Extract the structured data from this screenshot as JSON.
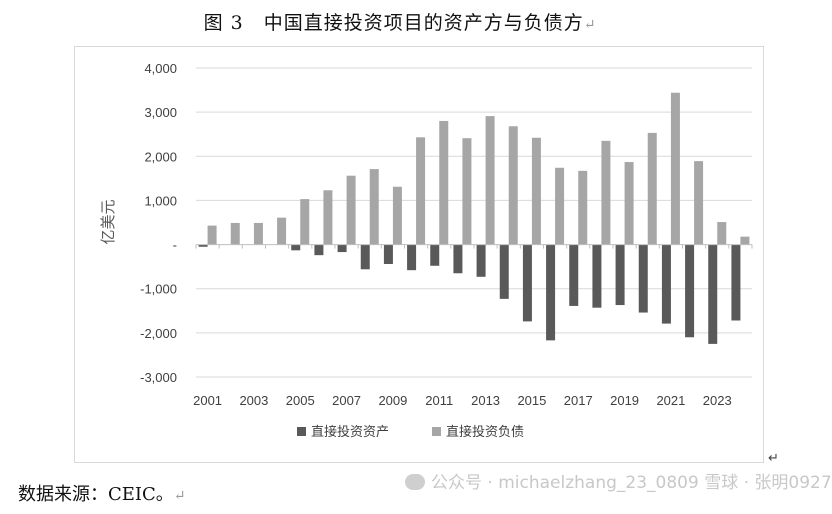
{
  "figure": {
    "title": "图 3　中国直接投资项目的资产方与负债方",
    "title_mark": "↵",
    "source": "数据来源：CEIC。",
    "source_mark": "↵",
    "corner_mark": "↵",
    "watermark": "公众号 · michaelzhang_23_0809   雪球 · 张明0927"
  },
  "colors": {
    "assets": "#595959",
    "liabilities": "#a6a6a6",
    "grid": "#d9d9d9",
    "zero_line": "#bfbfbf"
  },
  "chart_data": {
    "type": "bar",
    "title": "图 3　中国直接投资项目的资产方与负债方",
    "xlabel": "",
    "ylabel": "亿美元",
    "ylim": [
      -3000,
      4000
    ],
    "yticks": [
      4000,
      3000,
      2000,
      1000,
      0,
      -1000,
      -2000,
      -3000
    ],
    "ytick_labels": [
      "4,000",
      "3,000",
      "2,000",
      "1,000",
      "-",
      "-1,000",
      "-2,000",
      "-3,000"
    ],
    "grid": true,
    "legend": "bottom",
    "categories": [
      "2001",
      "2002",
      "2003",
      "2004",
      "2005",
      "2006",
      "2007",
      "2008",
      "2009",
      "2010",
      "2011",
      "2012",
      "2013",
      "2014",
      "2015",
      "2016",
      "2017",
      "2018",
      "2019",
      "2020",
      "2021",
      "2022",
      "2023",
      "2024"
    ],
    "xtick_labels": [
      "2001",
      "",
      "2003",
      "",
      "2005",
      "",
      "2007",
      "",
      "2009",
      "",
      "2011",
      "",
      "2013",
      "",
      "2015",
      "",
      "2017",
      "",
      "2019",
      "",
      "2021",
      "",
      "2023",
      ""
    ],
    "series": [
      {
        "name": "直接投资资产",
        "values": [
          -50,
          0,
          0,
          0,
          -130,
          -240,
          -170,
          -560,
          -440,
          -580,
          -480,
          -650,
          -730,
          -1230,
          -1740,
          -2170,
          -1390,
          -1430,
          -1370,
          -1540,
          -1790,
          -2100,
          -2250,
          -1720
        ]
      },
      {
        "name": "直接投资负债",
        "values": [
          430,
          490,
          490,
          610,
          1030,
          1230,
          1560,
          1710,
          1310,
          2430,
          2800,
          2410,
          2910,
          2680,
          2420,
          1740,
          1670,
          2350,
          1870,
          2530,
          3440,
          1890,
          510,
          180
        ]
      }
    ]
  }
}
